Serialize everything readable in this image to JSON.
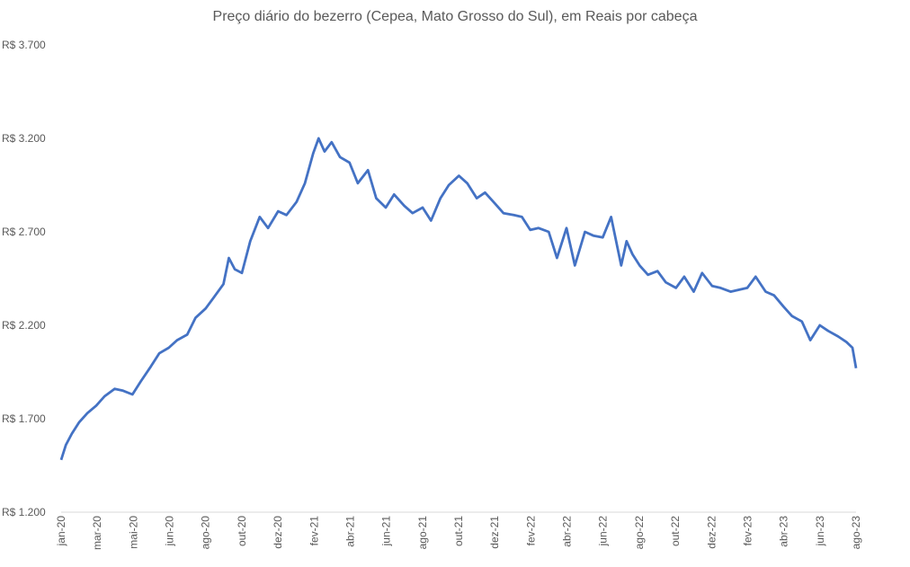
{
  "chart_data": {
    "type": "line",
    "title": "Preço diário do bezerro (Cepea, Mato Grosso do Sul), em Reais por cabeça",
    "xlabel": "",
    "ylabel": "",
    "ylim": [
      1200,
      3700
    ],
    "y_ticks": [
      1200,
      1700,
      2200,
      2700,
      3200,
      3700
    ],
    "y_tick_labels": [
      "R$ 1.200",
      "R$ 1.700",
      "R$ 2.200",
      "R$ 2.700",
      "R$ 3.200",
      "R$ 3.700"
    ],
    "x_tick_labels": [
      "jan-20",
      "mar-20",
      "mai-20",
      "jun-20",
      "ago-20",
      "out-20",
      "dez-20",
      "fev-21",
      "abr-21",
      "jun-21",
      "ago-21",
      "out-21",
      "dez-21",
      "fev-22",
      "abr-22",
      "jun-22",
      "ago-22",
      "out-22",
      "dez-22",
      "fev-23",
      "abr-23",
      "jun-23",
      "ago-23"
    ],
    "x_range": [
      "2020-01-02",
      "2023-08-31"
    ],
    "grid": false,
    "line_color": "#4472C4",
    "series": [
      {
        "x": [
          "2020-01-02",
          "2020-01-10",
          "2020-01-20",
          "2020-02-01",
          "2020-02-15",
          "2020-03-01",
          "2020-03-15",
          "2020-04-01",
          "2020-04-15",
          "2020-05-01",
          "2020-05-15",
          "2020-06-01",
          "2020-06-15",
          "2020-07-01",
          "2020-07-15",
          "2020-08-01",
          "2020-08-15",
          "2020-09-01",
          "2020-09-15",
          "2020-10-01",
          "2020-10-10",
          "2020-10-20",
          "2020-11-01",
          "2020-11-15",
          "2020-12-01",
          "2020-12-15",
          "2021-01-01",
          "2021-01-15",
          "2021-02-01",
          "2021-02-15",
          "2021-03-01",
          "2021-03-10",
          "2021-03-20",
          "2021-04-01",
          "2021-04-15",
          "2021-05-01",
          "2021-05-15",
          "2021-06-01",
          "2021-06-15",
          "2021-07-01",
          "2021-07-15",
          "2021-08-01",
          "2021-08-15",
          "2021-09-01",
          "2021-09-15",
          "2021-10-01",
          "2021-10-15",
          "2021-11-01",
          "2021-11-15",
          "2021-12-01",
          "2021-12-15",
          "2022-01-01",
          "2022-01-15",
          "2022-02-01",
          "2022-02-15",
          "2022-03-01",
          "2022-03-15",
          "2022-04-01",
          "2022-04-15",
          "2022-05-01",
          "2022-05-15",
          "2022-06-01",
          "2022-06-15",
          "2022-07-01",
          "2022-07-15",
          "2022-08-01",
          "2022-08-10",
          "2022-08-20",
          "2022-09-01",
          "2022-09-15",
          "2022-10-01",
          "2022-10-15",
          "2022-11-01",
          "2022-11-15",
          "2022-12-01",
          "2022-12-15",
          "2023-01-01",
          "2023-01-15",
          "2023-02-01",
          "2023-02-15",
          "2023-03-01",
          "2023-03-15",
          "2023-04-01",
          "2023-04-15",
          "2023-05-01",
          "2023-05-15",
          "2023-06-01",
          "2023-06-15",
          "2023-07-01",
          "2023-07-15",
          "2023-08-01",
          "2023-08-15",
          "2023-08-25",
          "2023-08-31"
        ],
        "values": [
          1480,
          1560,
          1620,
          1680,
          1730,
          1770,
          1820,
          1860,
          1850,
          1830,
          1900,
          1980,
          2050,
          2080,
          2120,
          2150,
          2240,
          2290,
          2350,
          2420,
          2560,
          2500,
          2480,
          2650,
          2780,
          2720,
          2810,
          2790,
          2860,
          2960,
          3120,
          3200,
          3130,
          3180,
          3100,
          3070,
          2960,
          3030,
          2880,
          2830,
          2900,
          2840,
          2800,
          2830,
          2760,
          2880,
          2950,
          3000,
          2960,
          2880,
          2910,
          2850,
          2800,
          2790,
          2780,
          2710,
          2720,
          2700,
          2560,
          2720,
          2520,
          2700,
          2680,
          2670,
          2780,
          2520,
          2650,
          2580,
          2520,
          2470,
          2490,
          2430,
          2400,
          2460,
          2380,
          2480,
          2410,
          2400,
          2380,
          2390,
          2400,
          2460,
          2380,
          2360,
          2300,
          2250,
          2220,
          2120,
          2200,
          2170,
          2140,
          2110,
          2080,
          1970
        ]
      }
    ]
  }
}
